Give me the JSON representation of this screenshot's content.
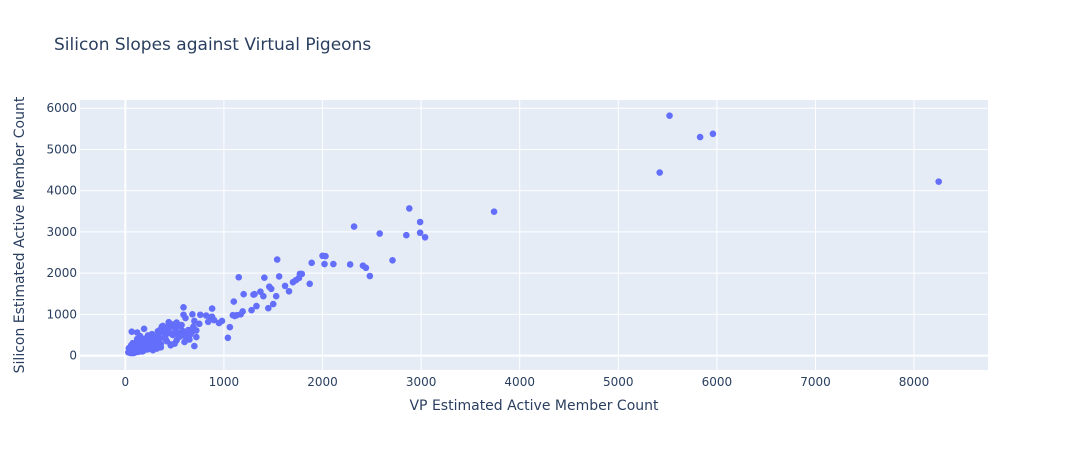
{
  "chart_data": {
    "type": "scatter",
    "title": "Silicon Slopes against Virtual Pigeons",
    "xlabel": "VP Estimated Active Member Count",
    "ylabel": "Silicon Estimated Active Member Count",
    "xlim": [
      -460,
      8750
    ],
    "ylim": [
      -350,
      6200
    ],
    "xticks": [
      0,
      1000,
      2000,
      3000,
      4000,
      5000,
      6000,
      7000,
      8000
    ],
    "yticks": [
      0,
      1000,
      2000,
      3000,
      4000,
      5000,
      6000
    ],
    "grid": true,
    "colors": {
      "marker": "#636efa",
      "plot_bg": "#e5ecf6",
      "grid": "#ffffff",
      "text": "#2a3f5f"
    },
    "series": [
      {
        "x": [
          8250,
          5960,
          5830,
          5520,
          5420,
          3740,
          2880,
          2990,
          3040,
          2990,
          2850,
          2580,
          2320,
          2710,
          2410,
          2440,
          2480,
          2110,
          2000,
          2030,
          2020,
          2280,
          1890,
          1770,
          1790,
          1760,
          1870,
          1700,
          1730,
          1660,
          1620,
          1560,
          1540,
          1530,
          1500,
          1480,
          1460,
          1450,
          1400,
          1370,
          1410,
          1330,
          1300,
          1310,
          1280,
          1200,
          1190,
          1170,
          1150,
          1130,
          1110,
          1100,
          1090,
          1060,
          1040,
          980,
          950,
          900,
          880,
          880,
          870,
          840,
          820,
          760,
          720,
          700,
          690,
          680,
          660,
          640,
          620,
          610,
          600,
          590,
          590,
          560,
          540,
          520,
          510,
          500,
          490,
          470,
          460,
          450,
          440,
          430,
          410,
          400,
          380,
          370,
          360,
          350,
          340,
          330,
          310,
          300,
          290,
          280,
          270,
          250,
          240,
          230,
          220,
          210,
          200,
          190,
          180,
          170,
          160,
          150,
          140,
          130,
          120,
          110,
          100,
          95,
          90,
          80,
          75,
          70,
          65,
          60,
          55,
          50,
          45,
          40,
          35,
          30,
          700,
          650,
          610,
          580,
          550,
          520,
          480,
          460,
          420,
          390,
          360,
          340,
          320,
          300,
          280,
          260,
          240,
          220,
          200,
          180,
          160,
          140,
          130,
          120,
          110,
          100,
          90,
          80,
          70,
          60,
          50,
          750,
          720,
          690,
          660,
          630,
          600,
          570,
          540,
          510,
          470,
          440,
          410,
          380,
          350,
          330,
          310,
          290,
          270,
          250,
          230,
          210,
          190,
          170,
          150,
          130,
          110,
          90,
          70,
          120,
          140,
          160,
          180,
          95,
          85,
          75,
          65,
          55
        ],
        "y": [
          4220,
          5380,
          5300,
          5820,
          4440,
          3490,
          3570,
          3240,
          2870,
          2980,
          2920,
          2960,
          3130,
          2310,
          2180,
          2130,
          1930,
          2220,
          2420,
          2410,
          2220,
          2210,
          2250,
          1980,
          1980,
          1880,
          1740,
          1780,
          1830,
          1560,
          1690,
          1920,
          2330,
          1440,
          1250,
          1620,
          1670,
          1150,
          1440,
          1550,
          1890,
          1200,
          1480,
          1490,
          1100,
          1490,
          1070,
          1000,
          1900,
          980,
          960,
          1310,
          980,
          690,
          430,
          840,
          790,
          860,
          1140,
          940,
          930,
          820,
          970,
          990,
          610,
          840,
          700,
          1000,
          520,
          620,
          440,
          910,
          330,
          1170,
          990,
          710,
          470,
          800,
          650,
          290,
          540,
          530,
          270,
          680,
          810,
          540,
          390,
          450,
          720,
          700,
          280,
          560,
          420,
          590,
          370,
          200,
          360,
          130,
          520,
          180,
          300,
          490,
          150,
          260,
          410,
          650,
          340,
          100,
          210,
          470,
          330,
          90,
          560,
          260,
          150,
          70,
          210,
          110,
          300,
          120,
          580,
          140,
          60,
          90,
          70,
          110,
          180,
          80,
          230,
          390,
          570,
          600,
          460,
          370,
          500,
          250,
          350,
          430,
          200,
          330,
          170,
          280,
          270,
          380,
          160,
          310,
          150,
          110,
          240,
          350,
          200,
          130,
          230,
          140,
          100,
          60,
          180,
          250,
          140,
          770,
          450,
          600,
          520,
          400,
          480,
          740,
          540,
          660,
          760,
          720,
          660,
          590,
          620,
          490,
          440,
          380,
          310,
          300,
          270,
          330,
          190,
          280,
          230,
          260,
          180,
          200,
          160,
          400,
          250,
          170,
          230,
          130,
          90,
          240,
          140,
          100
        ]
      }
    ]
  }
}
